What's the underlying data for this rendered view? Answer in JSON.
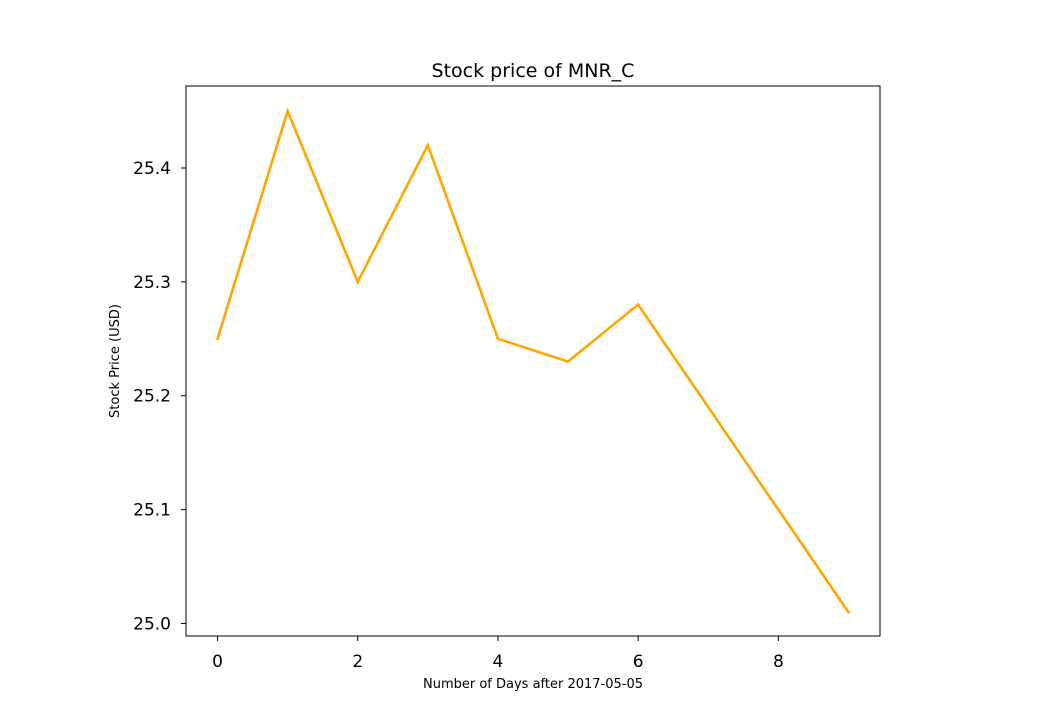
{
  "chart_data": {
    "type": "line",
    "title": "Stock price of MNR_C",
    "xlabel": "Number of Days after 2017-05-05",
    "ylabel": "Stock Price (USD)",
    "x": [
      0,
      1,
      2,
      3,
      4,
      5,
      6,
      7,
      8,
      9
    ],
    "series": [
      {
        "values": [
          25.25,
          25.45,
          25.3,
          25.42,
          25.25,
          25.23,
          25.28,
          25.19,
          25.1,
          25.01
        ],
        "color": "#ffa500"
      }
    ],
    "xlim": [
      -0.45,
      9.45
    ],
    "ylim": [
      24.989,
      25.472
    ],
    "xticks": [
      0,
      2,
      4,
      6,
      8
    ],
    "xtick_labels": [
      "0",
      "2",
      "4",
      "6",
      "8"
    ],
    "yticks": [
      25.0,
      25.1,
      25.2,
      25.3,
      25.4
    ],
    "ytick_labels": [
      "25.0",
      "25.1",
      "25.2",
      "25.3",
      "25.4"
    ],
    "grid": false,
    "legend": "none"
  }
}
